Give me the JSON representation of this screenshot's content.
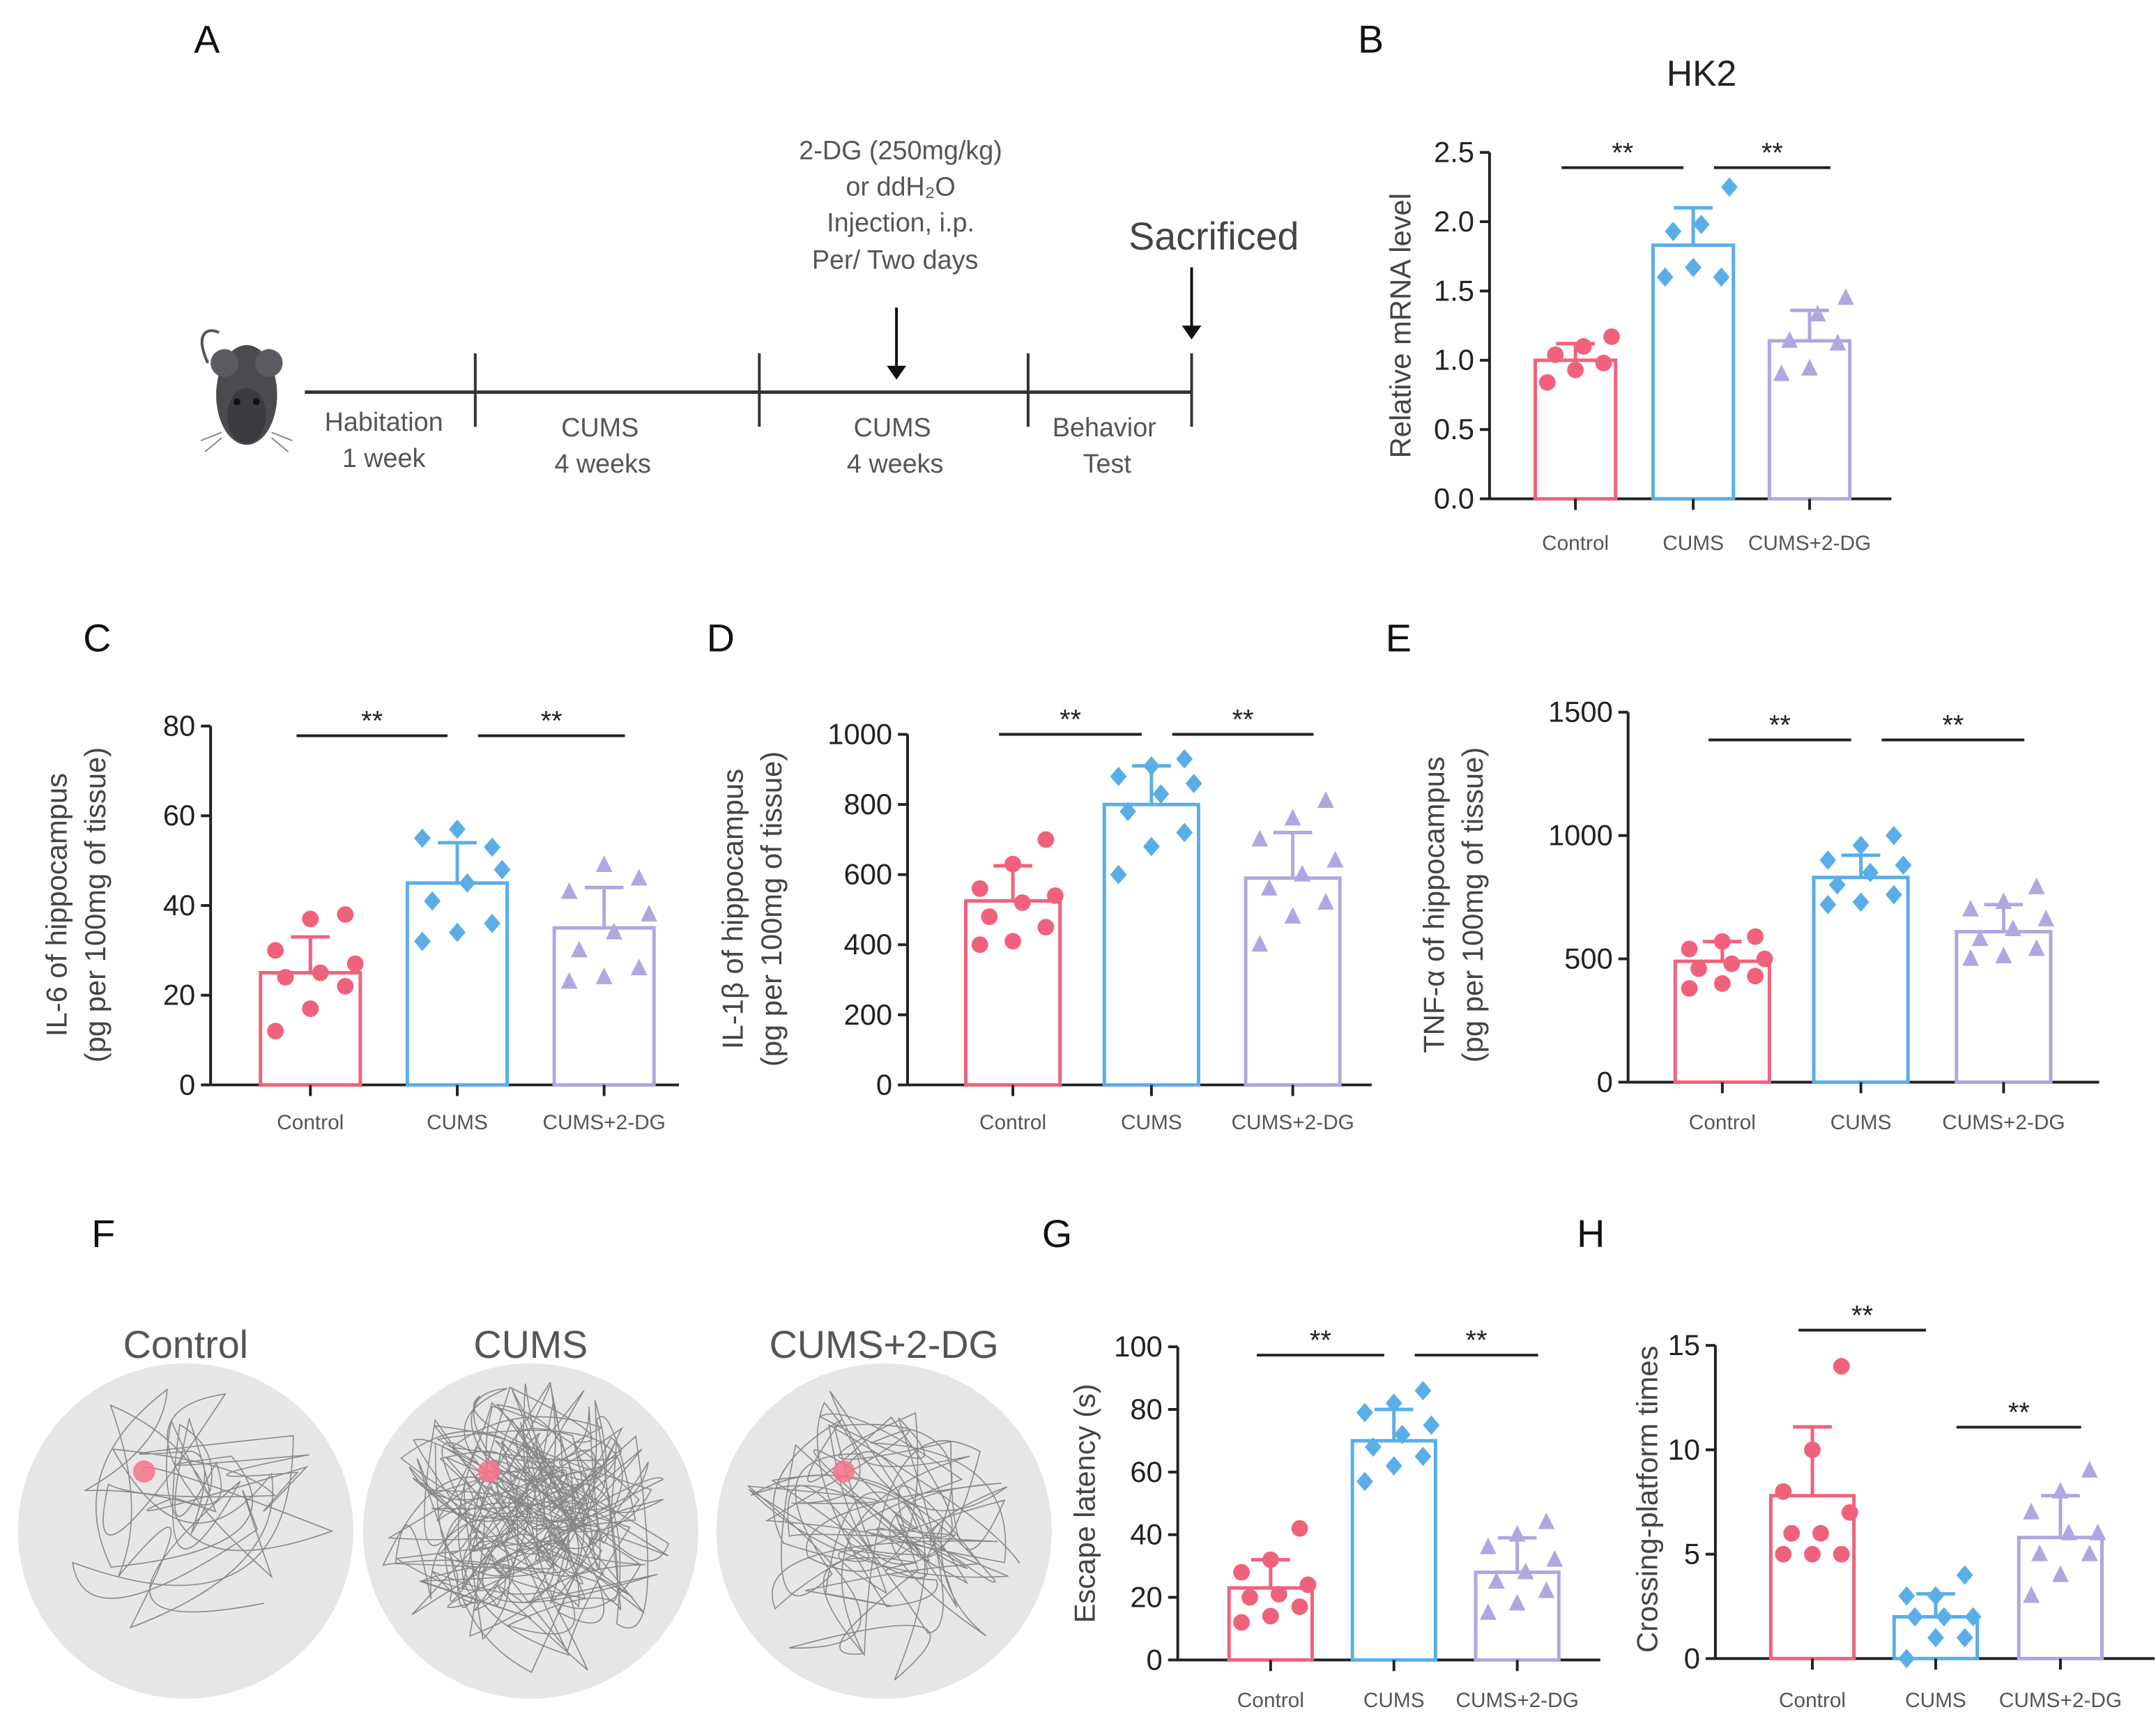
{
  "panels": {
    "A": "A",
    "B": "B",
    "C": "C",
    "D": "D",
    "E": "E",
    "F": "F",
    "G": "G",
    "H": "H"
  },
  "timeline": {
    "segments": [
      {
        "line1": "Habitation",
        "line2": "1 week"
      },
      {
        "line1": "CUMS",
        "line2": "4 weeks"
      },
      {
        "line1": "CUMS",
        "line2": "4 weeks"
      },
      {
        "line1": "Behavior",
        "line2": "Test"
      }
    ],
    "injection": [
      "2-DG (250mg/kg)",
      "or ddH₂O",
      "Injection, i.p.",
      "Per/ Two days"
    ],
    "sacrificed": "Sacrificed"
  },
  "colors": {
    "control": "#f0627c",
    "cums": "#5aaee8",
    "dg": "#b2a6e0",
    "axis": "#222222",
    "arena": "#e6e6e6",
    "path": "#888888"
  },
  "maze": {
    "labels": [
      "Control",
      "CUMS",
      "CUMS+2-DG"
    ]
  },
  "chart_data": [
    {
      "id": "B",
      "type": "bar",
      "title": "HK2",
      "ylabel": [
        "Relative mRNA level"
      ],
      "ylim": [
        0,
        2.5
      ],
      "yticks": [
        "0.0",
        "0.5",
        "1.0",
        "1.5",
        "2.0",
        "2.5"
      ],
      "tickvals": [
        0,
        0.5,
        1,
        1.5,
        2,
        2.5
      ],
      "categories": [
        "Control",
        "CUMS",
        "CUMS+2-DG"
      ],
      "means": [
        1.0,
        1.83,
        1.14
      ],
      "sd": [
        0.12,
        0.27,
        0.22
      ],
      "points": [
        [
          0.84,
          0.93,
          0.98,
          1.04,
          1.1,
          1.17
        ],
        [
          1.6,
          1.67,
          1.6,
          1.93,
          1.98,
          2.25
        ],
        [
          0.9,
          0.94,
          1.12,
          1.14,
          1.33,
          1.45
        ]
      ],
      "significance": [
        {
          "pair": [
            0,
            1
          ],
          "label": "**"
        },
        {
          "pair": [
            1,
            2
          ],
          "label": "**"
        }
      ]
    },
    {
      "id": "C",
      "type": "bar",
      "title": "",
      "ylabel": [
        "IL-6 of hippocampus",
        "(pg per 100mg of tissue)"
      ],
      "ylim": [
        0,
        80
      ],
      "yticks": [
        "0",
        "20",
        "40",
        "60",
        "80"
      ],
      "tickvals": [
        0,
        20,
        40,
        60,
        80
      ],
      "categories": [
        "Control",
        "CUMS",
        "CUMS+2-DG"
      ],
      "means": [
        25,
        45,
        35
      ],
      "sd": [
        8,
        9,
        9
      ],
      "points": [
        [
          12,
          17,
          22,
          24,
          25,
          27,
          30,
          37,
          38
        ],
        [
          32,
          34,
          36,
          41,
          45,
          48,
          55,
          57,
          53
        ],
        [
          23,
          24,
          26,
          30,
          34,
          38,
          43,
          49,
          46
        ]
      ],
      "significance": [
        {
          "pair": [
            0,
            1
          ],
          "label": "**"
        },
        {
          "pair": [
            1,
            2
          ],
          "label": "**"
        }
      ]
    },
    {
      "id": "D",
      "type": "bar",
      "title": "",
      "ylabel": [
        "IL-1β of hippocampus",
        "(pg per 100mg of tissue)"
      ],
      "ylim": [
        0,
        1000
      ],
      "yticks": [
        "0",
        "200",
        "400",
        "600",
        "800",
        "1000"
      ],
      "tickvals": [
        0,
        200,
        400,
        600,
        800,
        1000
      ],
      "categories": [
        "Control",
        "CUMS",
        "CUMS+2-DG"
      ],
      "means": [
        525,
        800,
        590
      ],
      "sd": [
        100,
        110,
        130
      ],
      "points": [
        [
          400,
          410,
          450,
          480,
          520,
          540,
          560,
          630,
          700
        ],
        [
          600,
          680,
          720,
          780,
          830,
          860,
          880,
          910,
          930
        ],
        [
          400,
          480,
          520,
          560,
          600,
          640,
          700,
          760,
          810
        ]
      ],
      "significance": [
        {
          "pair": [
            0,
            1
          ],
          "label": "**"
        },
        {
          "pair": [
            1,
            2
          ],
          "label": "**"
        }
      ]
    },
    {
      "id": "E",
      "type": "bar",
      "title": "",
      "ylabel": [
        "TNF-α of hippocampus",
        "(pg per 100mg of tissue)"
      ],
      "ylim": [
        0,
        1500
      ],
      "yticks": [
        "0",
        "500",
        "1000",
        "1500"
      ],
      "tickvals": [
        0,
        500,
        1000,
        1500
      ],
      "categories": [
        "Control",
        "CUMS",
        "CUMS+2-DG"
      ],
      "means": [
        490,
        830,
        610
      ],
      "sd": [
        80,
        90,
        110
      ],
      "points": [
        [
          380,
          400,
          430,
          460,
          480,
          500,
          540,
          570,
          590
        ],
        [
          720,
          730,
          760,
          800,
          850,
          880,
          900,
          960,
          1000
        ],
        [
          500,
          510,
          540,
          580,
          620,
          660,
          700,
          730,
          790
        ]
      ],
      "significance": [
        {
          "pair": [
            0,
            1
          ],
          "label": "**"
        },
        {
          "pair": [
            1,
            2
          ],
          "label": "**"
        }
      ]
    },
    {
      "id": "G",
      "type": "bar",
      "title": "",
      "ylabel": [
        "Escape latency (s)"
      ],
      "ylim": [
        0,
        100
      ],
      "yticks": [
        "0",
        "20",
        "40",
        "60",
        "80",
        "100"
      ],
      "tickvals": [
        0,
        20,
        40,
        60,
        80,
        100
      ],
      "categories": [
        "Control",
        "CUMS",
        "CUMS+2-DG"
      ],
      "means": [
        23,
        70,
        28
      ],
      "sd": [
        9,
        10,
        11
      ],
      "points": [
        [
          12,
          14,
          17,
          20,
          21,
          24,
          28,
          32,
          42
        ],
        [
          57,
          62,
          65,
          68,
          72,
          75,
          79,
          82,
          86
        ],
        [
          15,
          18,
          22,
          25,
          28,
          32,
          36,
          40,
          44
        ]
      ],
      "significance": [
        {
          "pair": [
            0,
            1
          ],
          "label": "**"
        },
        {
          "pair": [
            1,
            2
          ],
          "label": "**"
        }
      ]
    },
    {
      "id": "H",
      "type": "bar",
      "title": "",
      "ylabel": [
        "Crossing-platform times"
      ],
      "ylim": [
        0,
        15
      ],
      "yticks": [
        "0",
        "5",
        "10",
        "15"
      ],
      "tickvals": [
        0,
        5,
        10,
        15
      ],
      "categories": [
        "Control",
        "CUMS",
        "CUMS+2-DG"
      ],
      "means": [
        7.8,
        2.0,
        5.8
      ],
      "sd": [
        3.3,
        1.1,
        2.0
      ],
      "points": [
        [
          5,
          5,
          5,
          6,
          6,
          7,
          8,
          10,
          14
        ],
        [
          0,
          1,
          1,
          2,
          2,
          2,
          3,
          3,
          4
        ],
        [
          3,
          4,
          5,
          5,
          6,
          6,
          7,
          8,
          9
        ]
      ],
      "significance": [
        {
          "pair": [
            0,
            1
          ],
          "label": "**"
        },
        {
          "pair": [
            1,
            2
          ],
          "label": "**"
        }
      ]
    }
  ]
}
